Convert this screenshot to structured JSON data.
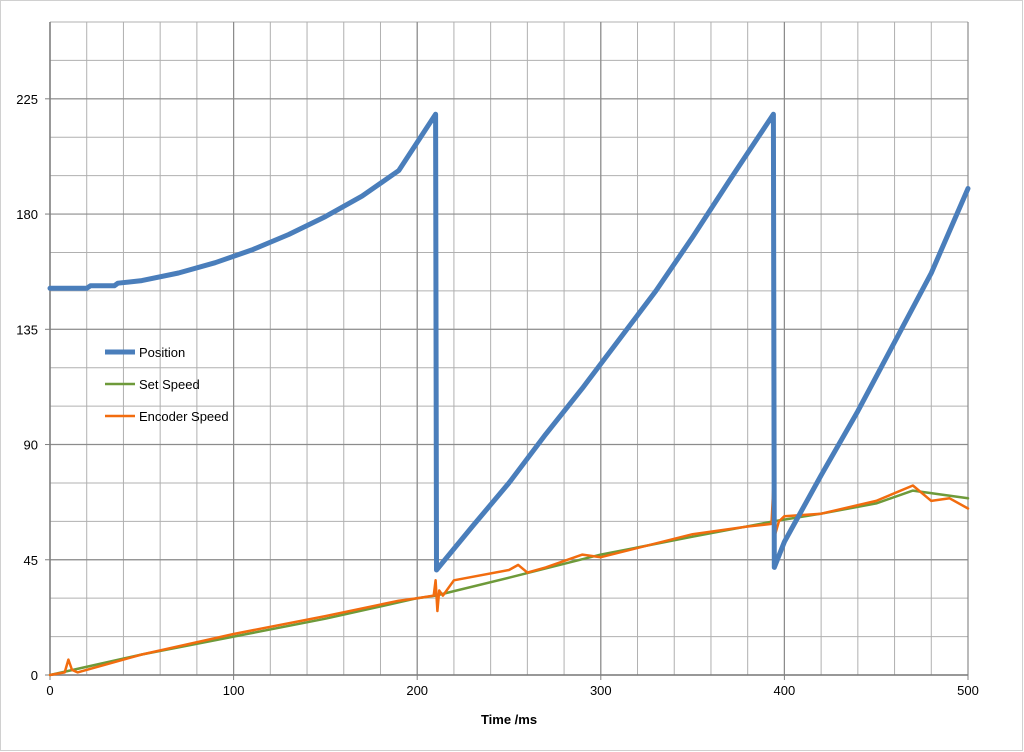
{
  "chart_data": {
    "type": "line",
    "title": "",
    "xlabel": "Time /ms",
    "ylabel": "",
    "xlim": [
      0,
      500
    ],
    "ylim": [
      0,
      255
    ],
    "x_ticks": [
      0,
      100,
      200,
      300,
      400,
      500
    ],
    "y_ticks": [
      0,
      45,
      90,
      135,
      180,
      225
    ],
    "grid": true,
    "legend_position": "left-middle",
    "colors": {
      "position": "#4a7ebb",
      "set_speed": "#6e9a3a",
      "encoder_speed": "#f26c0f",
      "grid": "#b0b0b0"
    },
    "series": [
      {
        "name": "Position",
        "x": [
          0,
          20,
          22,
          35,
          37,
          50,
          70,
          90,
          110,
          130,
          150,
          170,
          190,
          210,
          210.5,
          230,
          250,
          270,
          290,
          310,
          330,
          350,
          370,
          394,
          394.5,
          400,
          420,
          440,
          460,
          480,
          500
        ],
        "y": [
          151,
          151,
          152,
          152,
          153,
          154,
          157,
          161,
          166,
          172,
          179,
          187,
          197,
          219,
          41,
          58,
          75,
          94,
          112,
          131,
          150,
          171,
          193,
          219,
          42,
          52,
          78,
          103,
          130,
          157,
          190
        ]
      },
      {
        "name": "Set Speed",
        "x": [
          0,
          50,
          100,
          150,
          200,
          210,
          250,
          300,
          350,
          394,
          420,
          450,
          470,
          500
        ],
        "y": [
          0,
          8,
          15,
          22,
          30,
          31,
          38,
          47,
          54,
          60,
          63,
          67,
          72,
          69
        ]
      },
      {
        "name": "Encoder Speed",
        "x": [
          0,
          8,
          10,
          12,
          15,
          50,
          100,
          150,
          190,
          200,
          209,
          210,
          211,
          212,
          214,
          220,
          250,
          255,
          260,
          270,
          290,
          300,
          350,
          380,
          393,
          394,
          395,
          397,
          400,
          420,
          450,
          470,
          480,
          490,
          500
        ],
        "y": [
          0,
          1,
          6,
          2,
          1,
          8,
          16,
          23,
          29,
          30,
          31,
          37,
          25,
          33,
          31,
          37,
          41,
          43,
          40,
          42,
          47,
          46,
          55,
          58,
          59,
          74,
          55,
          60,
          62,
          63,
          68,
          74,
          68,
          69,
          65
        ]
      }
    ]
  }
}
